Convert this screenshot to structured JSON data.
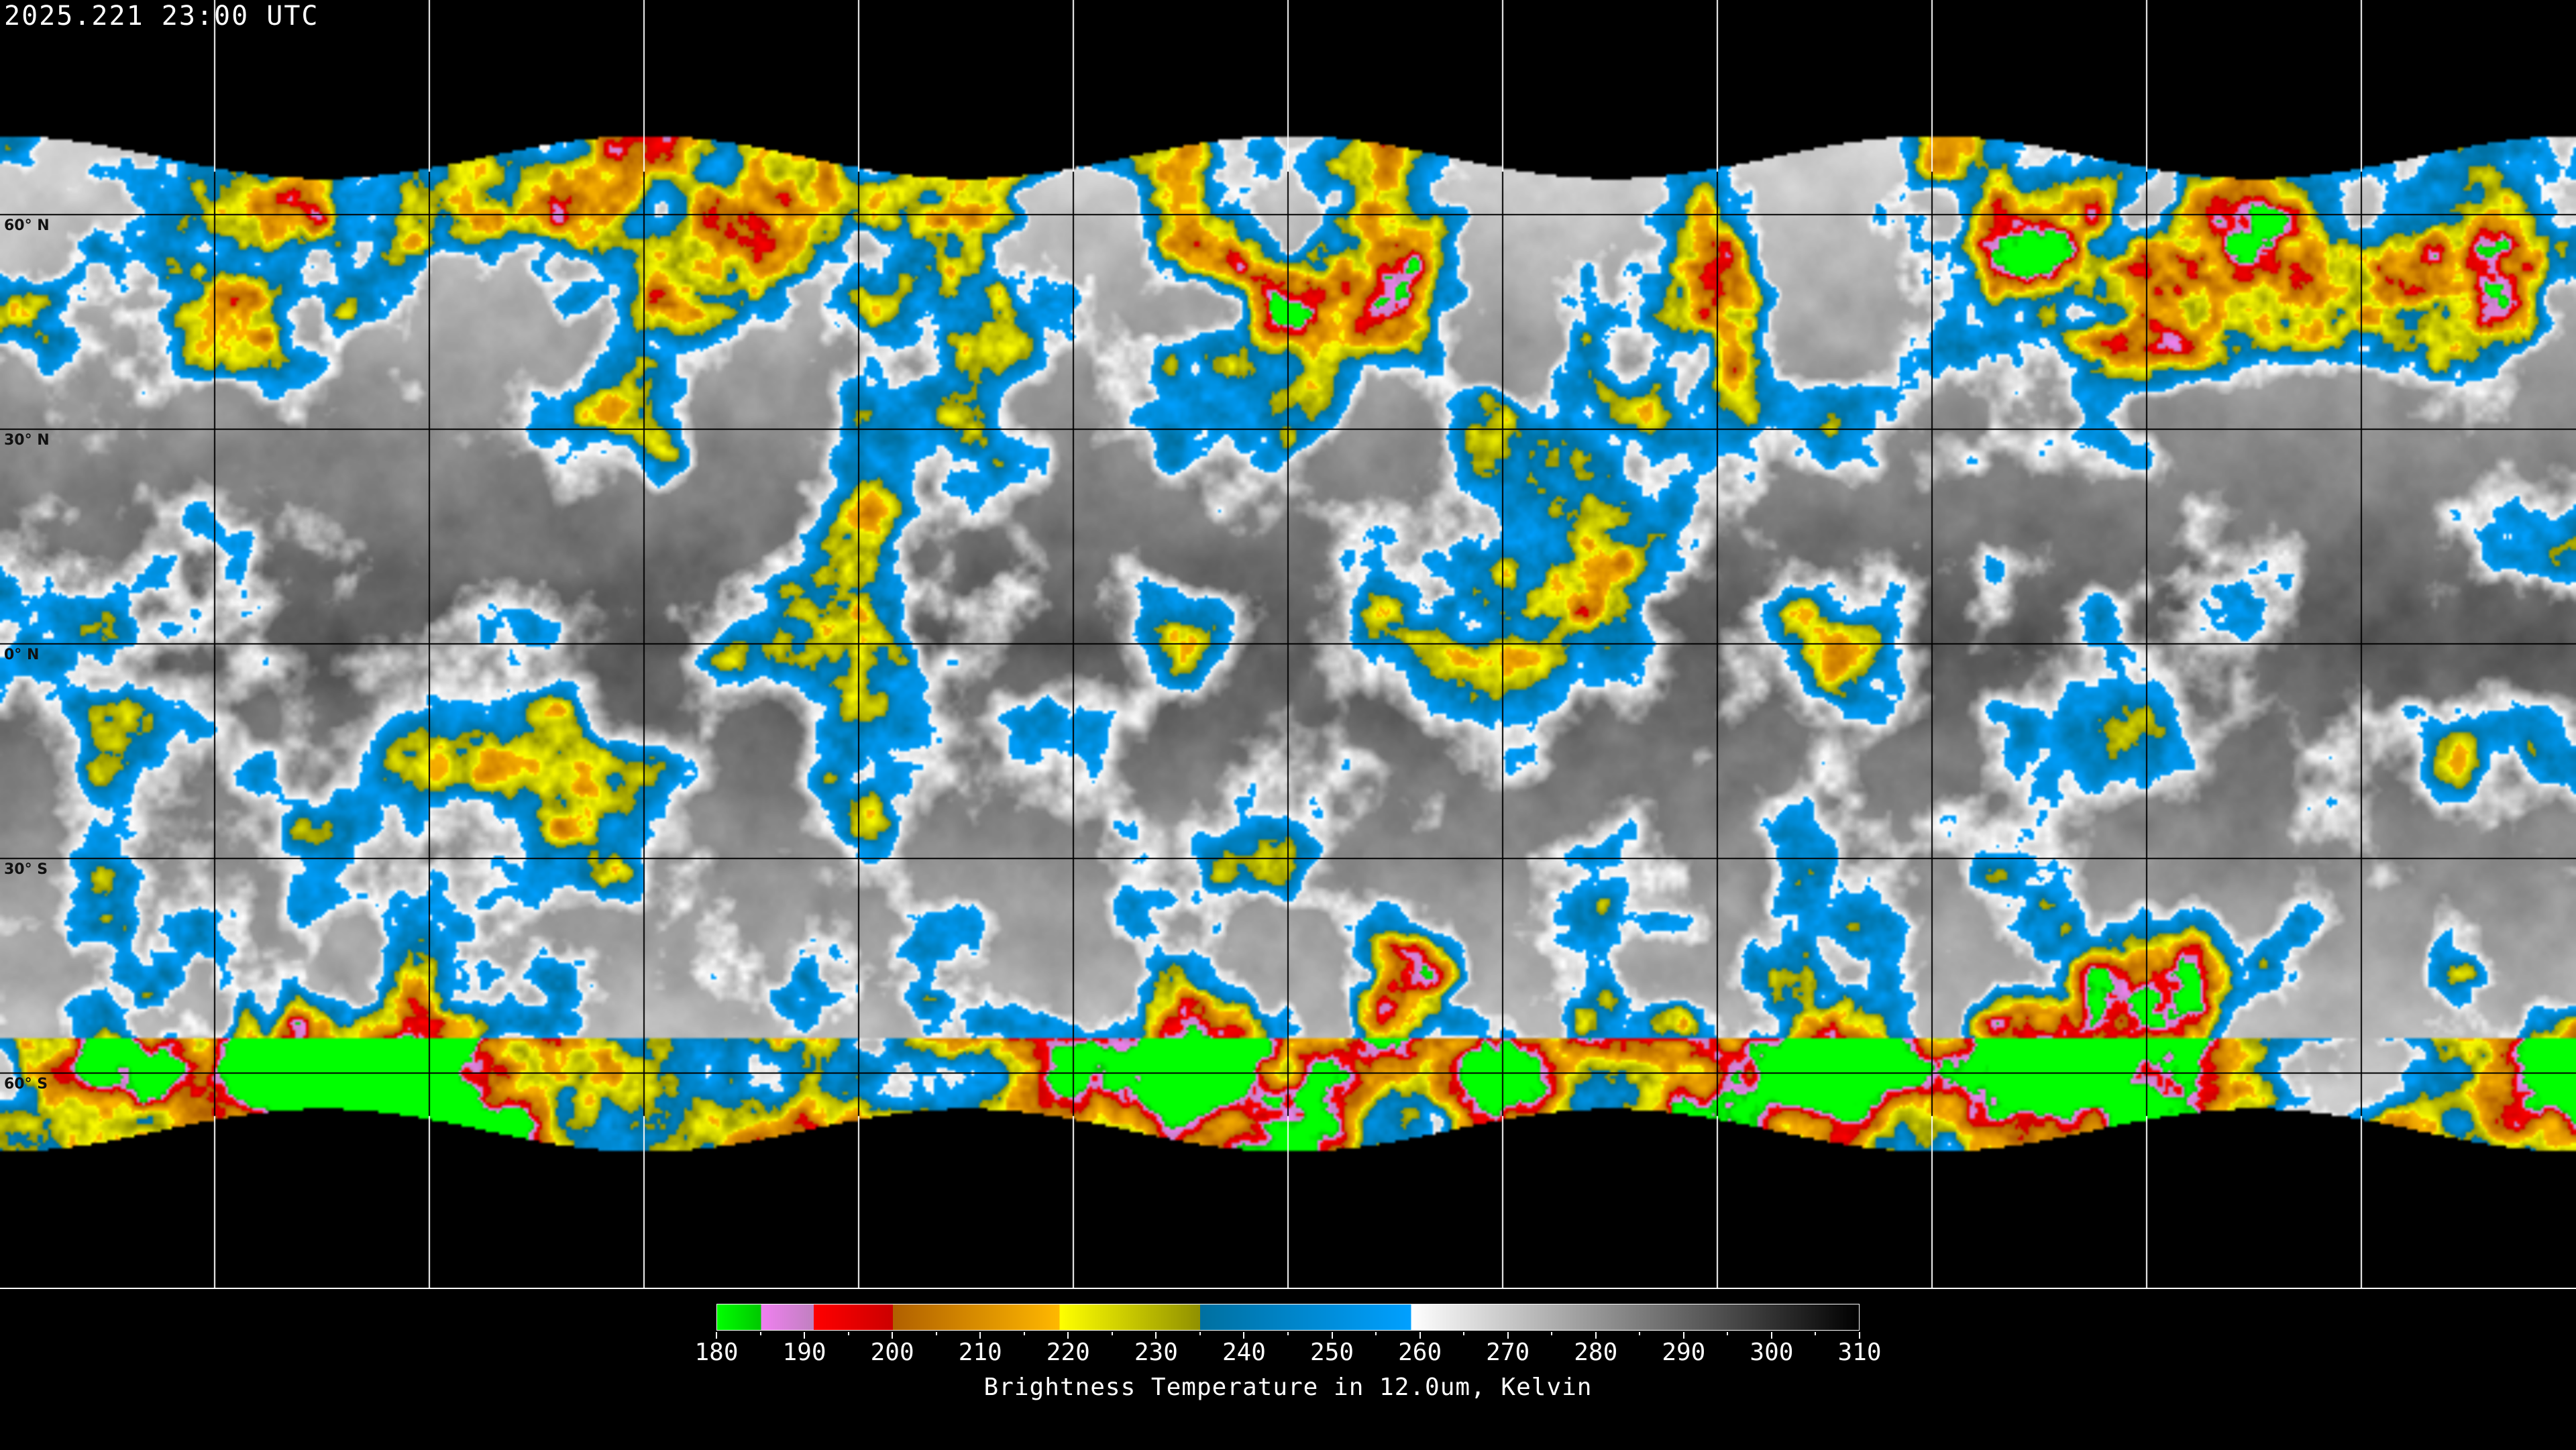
{
  "header": {
    "timestamp": "2025.221 23:00 UTC"
  },
  "map": {
    "projection": "equirectangular",
    "grid_spacing_deg": 30,
    "lat_labels": [
      {
        "lat": 60,
        "text": "60° N"
      },
      {
        "lat": 30,
        "text": "30° N"
      },
      {
        "lat": 0,
        "text": "0° N"
      },
      {
        "lat": -30,
        "text": "30° S"
      },
      {
        "lat": -60,
        "text": "60° S"
      }
    ],
    "grid_color_over_data": "#000000",
    "grid_color_over_space": "#ffffff",
    "coastline_color": "#000000"
  },
  "colorbar": {
    "min": 180,
    "max": 310,
    "tick_labels": [
      "180",
      "190",
      "200",
      "210",
      "220",
      "230",
      "240",
      "250",
      "260",
      "270",
      "280",
      "290",
      "300",
      "310"
    ],
    "minor_tick_step": 5,
    "title": "Brightness Temperature in 12.0um, Kelvin",
    "segments": [
      {
        "from": 180,
        "to": 185,
        "start": "#00ff00",
        "end": "#00c800"
      },
      {
        "from": 185,
        "to": 191,
        "start": "#f080f0",
        "end": "#c080c0"
      },
      {
        "from": 191,
        "to": 200,
        "start": "#ff0000",
        "end": "#cc0000"
      },
      {
        "from": 200,
        "to": 219,
        "start": "#b06000",
        "end": "#ffb800"
      },
      {
        "from": 219,
        "to": 235,
        "start": "#ffff00",
        "end": "#909000"
      },
      {
        "from": 235,
        "to": 259,
        "start": "#0070a0",
        "end": "#00a0ff"
      },
      {
        "from": 259,
        "to": 310,
        "start": "#ffffff",
        "end": "#000000"
      }
    ]
  }
}
